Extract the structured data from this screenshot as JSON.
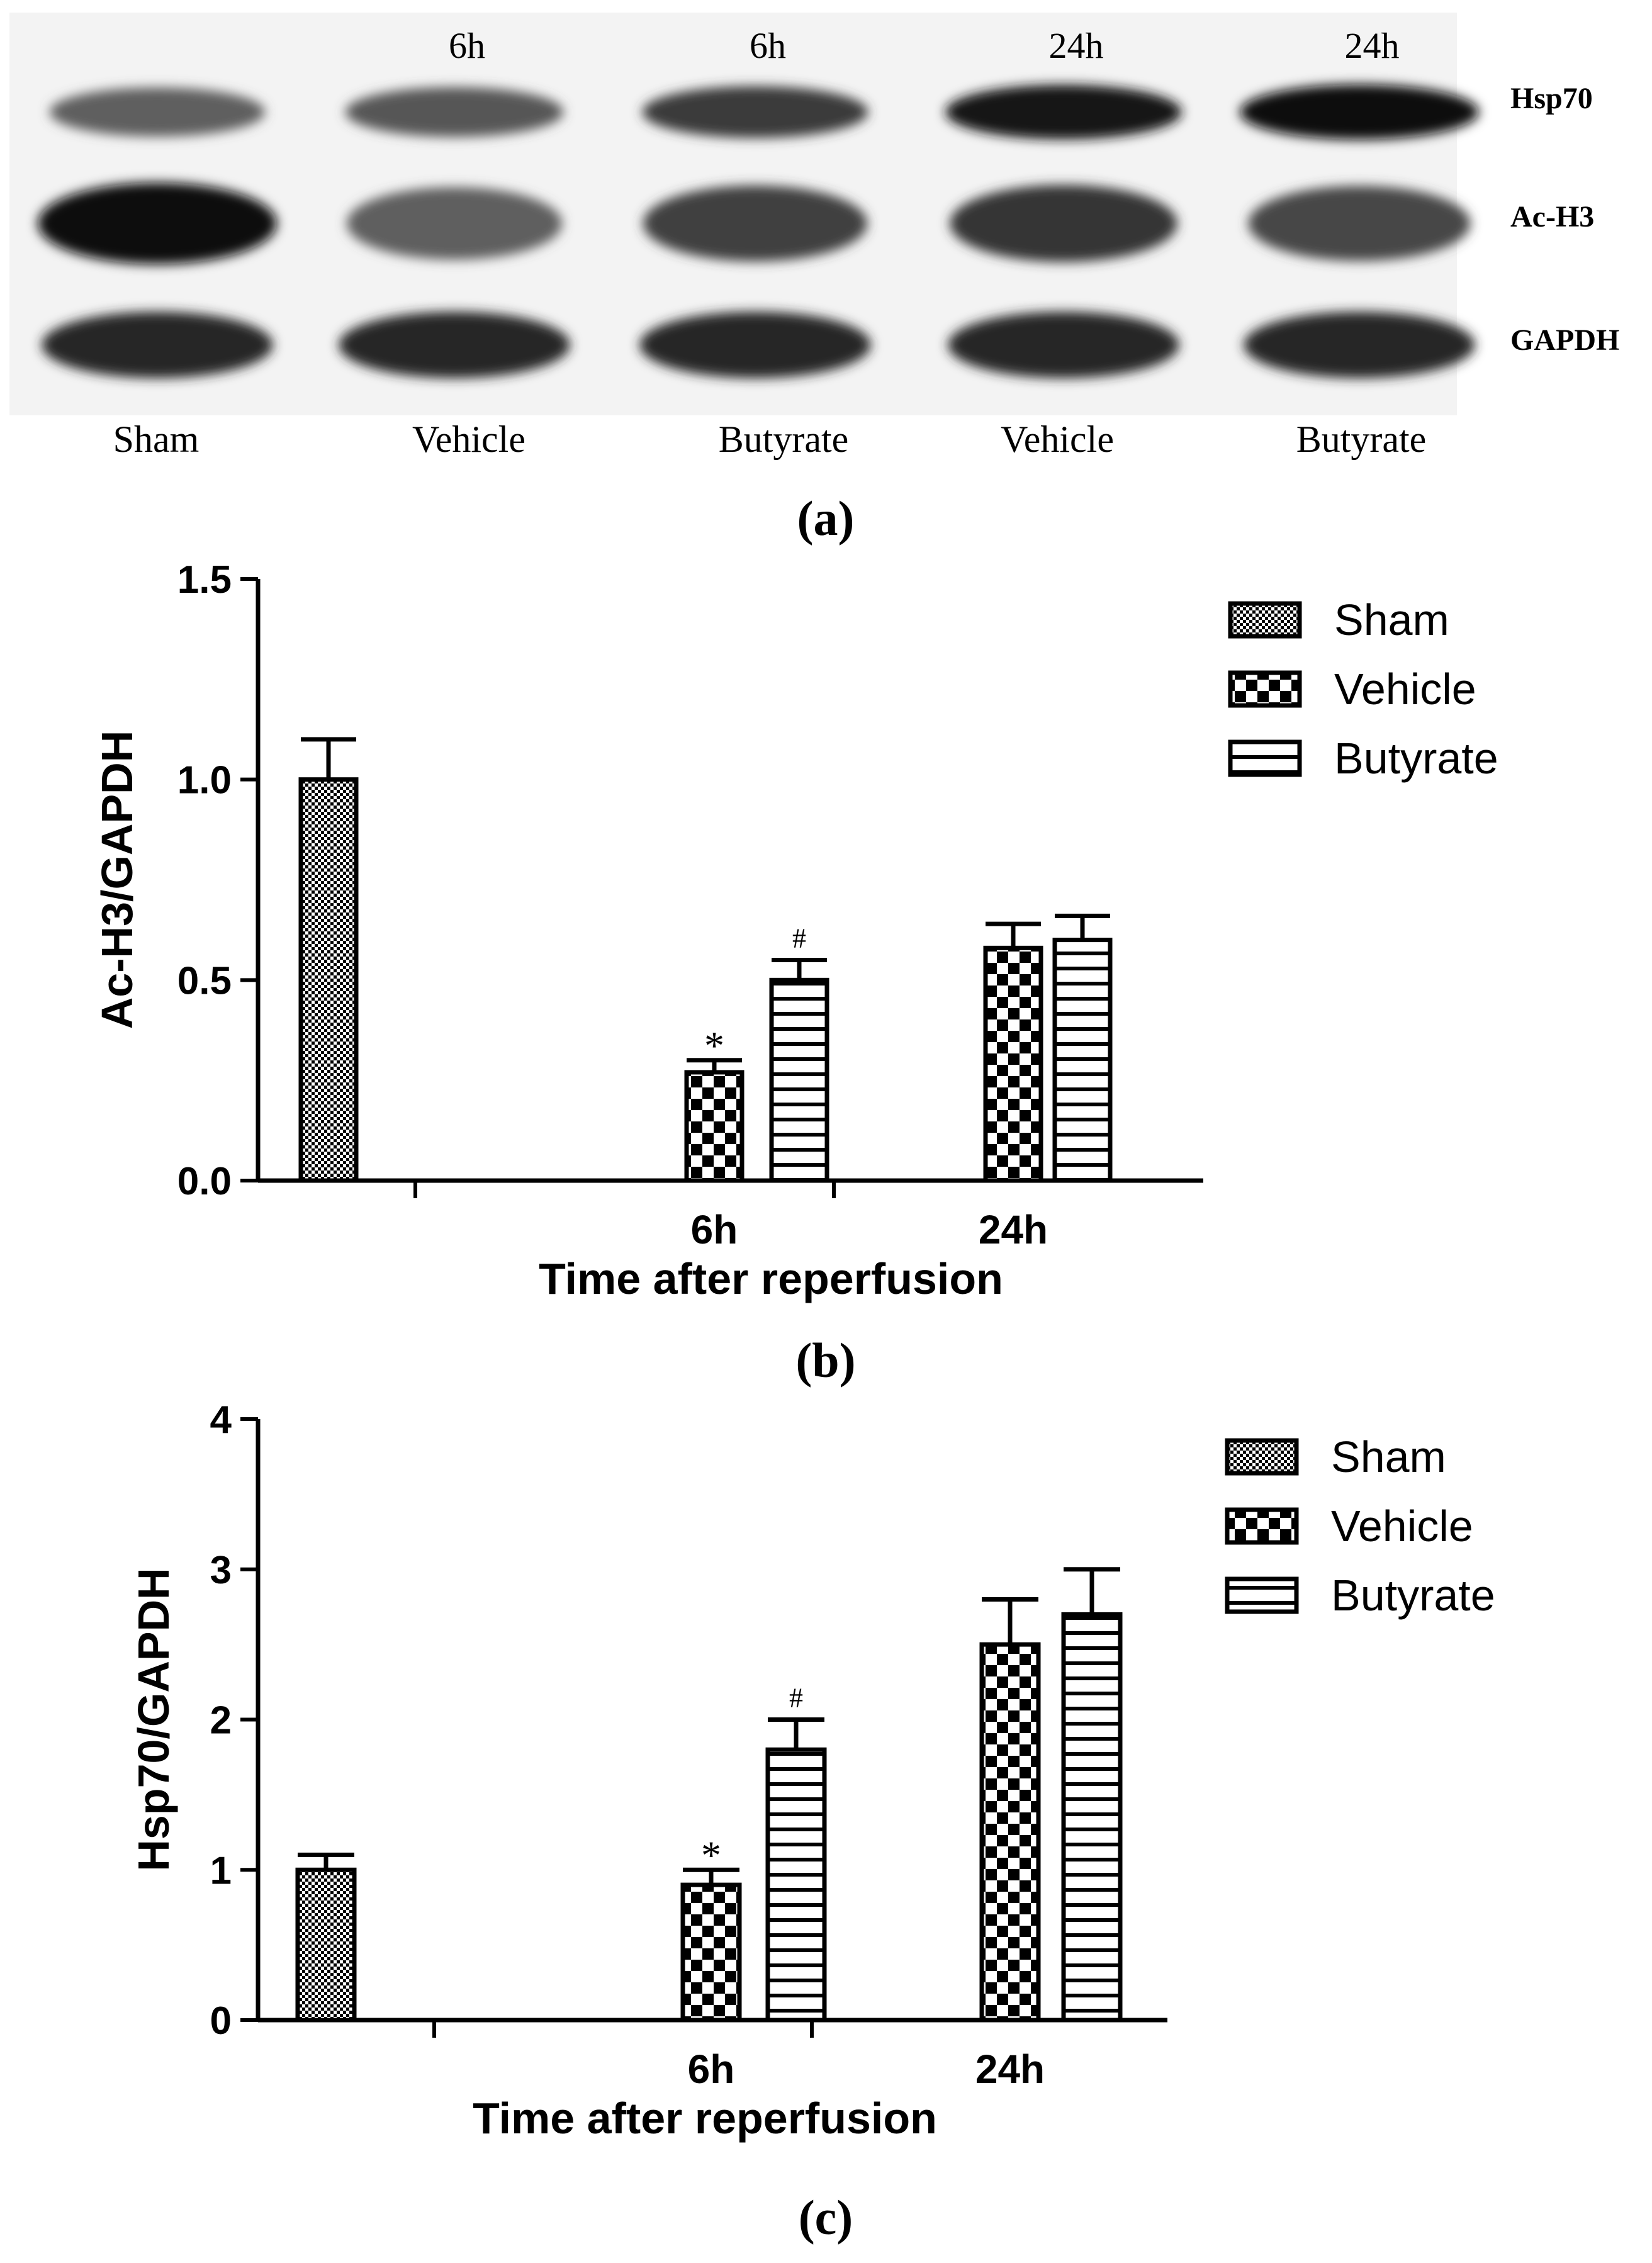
{
  "blot": {
    "timepoint_labels": [
      "",
      "6h",
      "6h",
      "24h",
      "24h"
    ],
    "lane_labels": [
      "Sham",
      "Vehicle",
      "Butyrate",
      "Vehicle",
      "Butyrate"
    ],
    "row_labels": [
      "Hsp70",
      "Ac-H3",
      "GAPDH"
    ],
    "band_intensity": [
      [
        0.55,
        0.6,
        0.75,
        0.95,
        1.0
      ],
      [
        1.0,
        0.55,
        0.72,
        0.78,
        0.68
      ],
      [
        0.85,
        0.85,
        0.85,
        0.85,
        0.85
      ]
    ],
    "panel_label": "(a)"
  },
  "legend": {
    "items": [
      {
        "name": "Sham",
        "pattern": "dense-check"
      },
      {
        "name": "Vehicle",
        "pattern": "checker"
      },
      {
        "name": "Butyrate",
        "pattern": "hstripes"
      }
    ]
  },
  "chart_data": [
    {
      "type": "bar",
      "panel_label": "(b)",
      "title": "",
      "ylabel": "Ac-H3/GAPDH",
      "xlabel": "Time after reperfusion",
      "ylim": [
        0,
        1.5
      ],
      "yticks": [
        "0.0",
        "0.5",
        "1.0",
        "1.5"
      ],
      "categories": [
        "",
        "6h",
        "24h"
      ],
      "series": [
        {
          "name": "Sham",
          "values": [
            1.0,
            null,
            null
          ],
          "errors": [
            0.1,
            null,
            null
          ]
        },
        {
          "name": "Vehicle",
          "values": [
            null,
            0.27,
            0.58
          ],
          "errors": [
            null,
            0.03,
            0.06
          ]
        },
        {
          "name": "Butyrate",
          "values": [
            null,
            0.5,
            0.6
          ],
          "errors": [
            null,
            0.05,
            0.06
          ]
        }
      ],
      "annotations": [
        {
          "series": "Vehicle",
          "category": "6h",
          "text": "*"
        },
        {
          "series": "Butyrate",
          "category": "6h",
          "text": "#"
        }
      ]
    },
    {
      "type": "bar",
      "panel_label": "(c)",
      "title": "",
      "ylabel": "Hsp70/GAPDH",
      "xlabel": "Time after reperfusion",
      "ylim": [
        0,
        4
      ],
      "yticks": [
        "0",
        "1",
        "2",
        "3",
        "4"
      ],
      "categories": [
        "",
        "6h",
        "24h"
      ],
      "series": [
        {
          "name": "Sham",
          "values": [
            1.0,
            null,
            null
          ],
          "errors": [
            0.1,
            null,
            null
          ]
        },
        {
          "name": "Vehicle",
          "values": [
            null,
            0.9,
            2.5
          ],
          "errors": [
            null,
            0.1,
            0.3
          ]
        },
        {
          "name": "Butyrate",
          "values": [
            null,
            1.8,
            2.7
          ],
          "errors": [
            null,
            0.2,
            0.3
          ]
        }
      ],
      "annotations": [
        {
          "series": "Vehicle",
          "category": "6h",
          "text": "*"
        },
        {
          "series": "Butyrate",
          "category": "6h",
          "text": "#"
        }
      ]
    }
  ]
}
